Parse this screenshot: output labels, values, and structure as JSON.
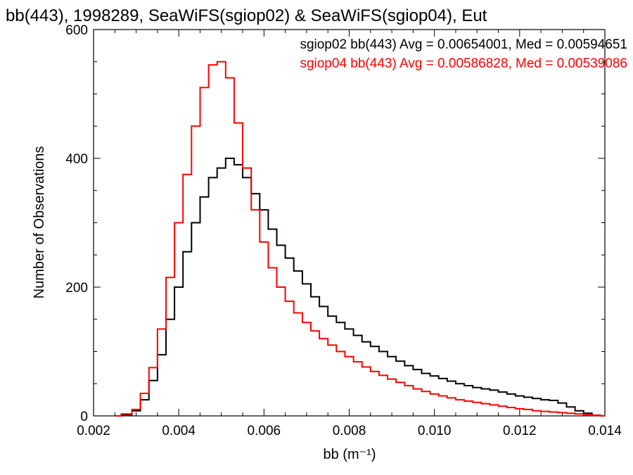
{
  "chart_data": {
    "type": "histogram",
    "title": "bb(443), 1998289, SeaWiFS(sgiop02) & SeaWiFS(sgiop04), Eut",
    "xlabel": "bb (m⁻¹)",
    "ylabel": "Number of Observations",
    "xlim": [
      0.002,
      0.014
    ],
    "ylim": [
      0,
      600
    ],
    "xticks": [
      "0.002",
      "0.004",
      "0.006",
      "0.008",
      "0.010",
      "0.012",
      "0.014"
    ],
    "yticks": [
      "0",
      "200",
      "400",
      "600"
    ],
    "legend_position": "top-right",
    "grid": false,
    "series": [
      {
        "name": "sgiop02",
        "color": "#000000",
        "legend": "sgiop02 bb(443) Avg = 0.00654001, Med = 0.00594651",
        "x": [
          0.0025,
          0.0028,
          0.003,
          0.0032,
          0.0034,
          0.0036,
          0.0038,
          0.004,
          0.0042,
          0.0044,
          0.0046,
          0.0048,
          0.005,
          0.0052,
          0.0054,
          0.0056,
          0.0058,
          0.006,
          0.0062,
          0.0064,
          0.0066,
          0.0068,
          0.007,
          0.0072,
          0.0074,
          0.0076,
          0.0078,
          0.008,
          0.0082,
          0.0084,
          0.0086,
          0.0088,
          0.009,
          0.0092,
          0.0094,
          0.0096,
          0.0098,
          0.01,
          0.0102,
          0.0104,
          0.0106,
          0.0108,
          0.011,
          0.0112,
          0.0114,
          0.0116,
          0.0118,
          0.012,
          0.0122,
          0.0124,
          0.0126,
          0.0128,
          0.013,
          0.0132,
          0.0134,
          0.0136,
          0.0138,
          0.014
        ],
        "y": [
          0,
          2,
          8,
          25,
          55,
          95,
          150,
          200,
          255,
          300,
          340,
          370,
          385,
          400,
          390,
          370,
          345,
          320,
          290,
          265,
          245,
          225,
          205,
          185,
          170,
          155,
          145,
          135,
          125,
          115,
          108,
          100,
          92,
          85,
          78,
          72,
          66,
          62,
          58,
          54,
          50,
          47,
          44,
          42,
          40,
          37,
          34,
          31,
          29,
          27,
          25,
          24,
          20,
          14,
          8,
          4,
          1,
          0
        ]
      },
      {
        "name": "sgiop04",
        "color": "#ff0000",
        "legend": "sgiop04 bb(443) Avg = 0.00586828, Med = 0.00539086",
        "x": [
          0.0025,
          0.0028,
          0.003,
          0.0032,
          0.0034,
          0.0036,
          0.0038,
          0.004,
          0.0042,
          0.0044,
          0.0046,
          0.0048,
          0.005,
          0.0052,
          0.0054,
          0.0056,
          0.0058,
          0.006,
          0.0062,
          0.0064,
          0.0066,
          0.0068,
          0.007,
          0.0072,
          0.0074,
          0.0076,
          0.0078,
          0.008,
          0.0082,
          0.0084,
          0.0086,
          0.0088,
          0.009,
          0.0092,
          0.0094,
          0.0096,
          0.0098,
          0.01,
          0.0102,
          0.0104,
          0.0106,
          0.0108,
          0.011,
          0.0112,
          0.0114,
          0.0116,
          0.0118,
          0.012,
          0.0122,
          0.0124,
          0.0126,
          0.0128,
          0.013,
          0.0132,
          0.0134,
          0.0136,
          0.0138,
          0.014
        ],
        "y": [
          0,
          3,
          10,
          35,
          75,
          135,
          215,
          300,
          375,
          450,
          510,
          545,
          550,
          525,
          455,
          385,
          320,
          270,
          230,
          200,
          178,
          160,
          145,
          132,
          120,
          110,
          100,
          92,
          84,
          76,
          69,
          63,
          57,
          52,
          47,
          42,
          38,
          34,
          31,
          28,
          25,
          23,
          21,
          19,
          17,
          15,
          13,
          11,
          10,
          8,
          7,
          6,
          5,
          4,
          3,
          2,
          1,
          0
        ]
      }
    ]
  }
}
